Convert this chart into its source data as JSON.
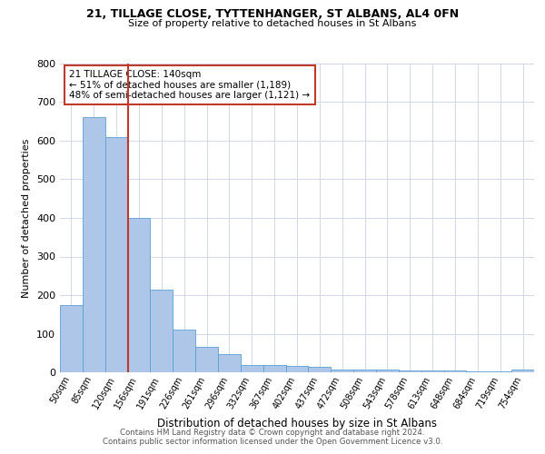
{
  "title": "21, TILLAGE CLOSE, TYTTENHANGER, ST ALBANS, AL4 0FN",
  "subtitle": "Size of property relative to detached houses in St Albans",
  "xlabel": "Distribution of detached houses by size in St Albans",
  "ylabel": "Number of detached properties",
  "footer_line1": "Contains HM Land Registry data © Crown copyright and database right 2024.",
  "footer_line2": "Contains public sector information licensed under the Open Government Licence v3.0.",
  "annotation_line1": "21 TILLAGE CLOSE: 140sqm",
  "annotation_line2": "← 51% of detached houses are smaller (1,189)",
  "annotation_line3": "48% of semi-detached houses are larger (1,121) →",
  "bar_color": "#aec6e8",
  "bar_edge_color": "#5a9fd4",
  "vline_color": "#c0392b",
  "vline_x": 2.5,
  "annotation_box_color": "#c0392b",
  "bins": [
    "50sqm",
    "85sqm",
    "120sqm",
    "156sqm",
    "191sqm",
    "226sqm",
    "261sqm",
    "296sqm",
    "332sqm",
    "367sqm",
    "402sqm",
    "437sqm",
    "472sqm",
    "508sqm",
    "543sqm",
    "578sqm",
    "613sqm",
    "648sqm",
    "684sqm",
    "719sqm",
    "754sqm"
  ],
  "values": [
    175,
    660,
    610,
    400,
    215,
    110,
    65,
    47,
    20,
    18,
    17,
    13,
    8,
    8,
    8,
    5,
    5,
    5,
    3,
    3,
    8
  ],
  "ylim": [
    0,
    800
  ],
  "yticks": [
    0,
    100,
    200,
    300,
    400,
    500,
    600,
    700,
    800
  ],
  "background_color": "#ffffff",
  "grid_color": "#d0d8e8"
}
